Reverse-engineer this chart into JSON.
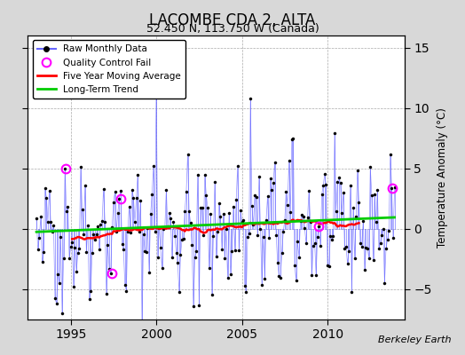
{
  "title": "LACOMBE CDA 2, ALTA",
  "subtitle": "52.450 N, 113.750 W (Canada)",
  "ylabel": "Temperature Anomaly (°C)",
  "watermark": "Berkeley Earth",
  "xlim": [
    1992.5,
    2014.5
  ],
  "ylim": [
    -7.5,
    16
  ],
  "yticks": [
    -5,
    0,
    5,
    10,
    15
  ],
  "xticks": [
    1995,
    2000,
    2005,
    2010
  ],
  "bg_color": "#d8d8d8",
  "plot_bg_color": "#ffffff",
  "raw_line_color": "#6666ff",
  "raw_marker_color": "#000000",
  "ma_color": "#ff0000",
  "trend_color": "#00cc00",
  "qc_color": "#ff00ff",
  "seed": 42,
  "n_months": 252,
  "start_year": 1993.0
}
